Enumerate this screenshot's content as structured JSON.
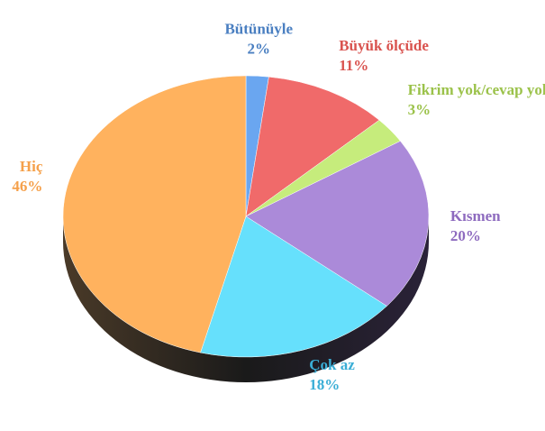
{
  "chart_data": {
    "type": "pie",
    "categories": [
      "Bütünüyle",
      "Büyük ölçüde",
      "Fikrim yok/cevap yok",
      "Kısmen",
      "Çok az",
      "Hiç"
    ],
    "values": [
      2,
      11,
      3,
      20,
      18,
      46
    ],
    "value_labels": [
      "2%",
      "11%",
      "3%",
      "20%",
      "18%",
      "46%"
    ],
    "colors": [
      "#6aa6f0",
      "#f06a6a",
      "#c6ec7c",
      "#ab8ad9",
      "#66e0fc",
      "#ffb25e"
    ],
    "label_colors": [
      "#4a7fc1",
      "#d9534f",
      "#9bc24a",
      "#8e6bbf",
      "#3aaed6",
      "#f5a04a"
    ]
  }
}
